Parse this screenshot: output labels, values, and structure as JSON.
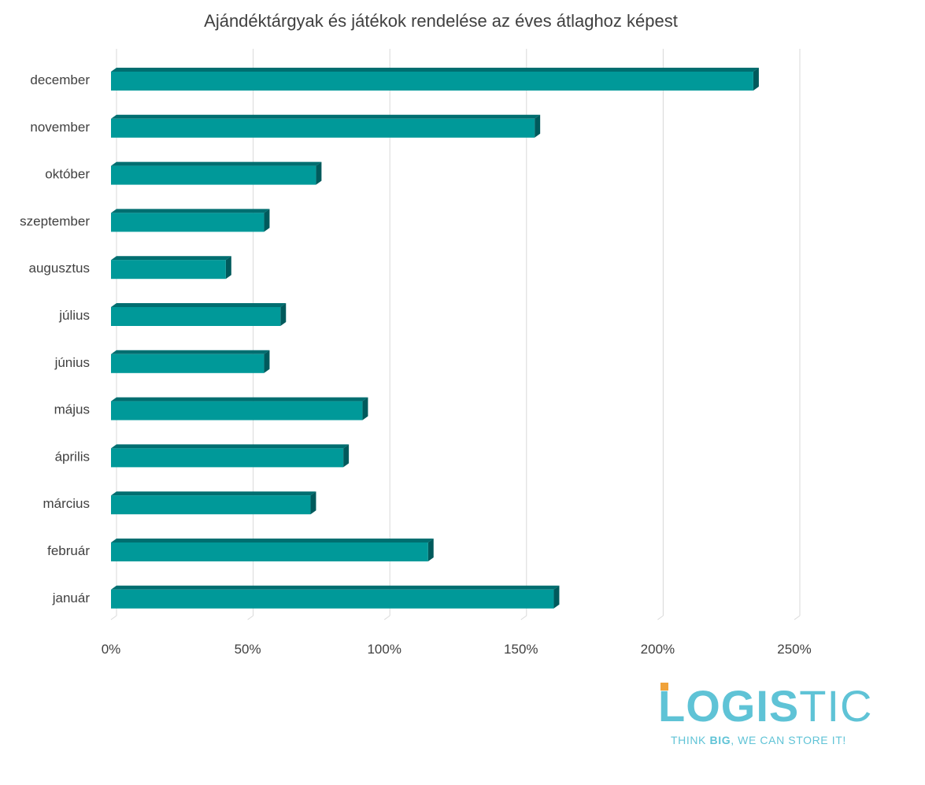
{
  "chart_data": {
    "type": "bar",
    "orientation": "horizontal",
    "title": "Ajándéktárgyak és játékok rendelése az éves átlaghoz képest",
    "categories": [
      "december",
      "november",
      "október",
      "szeptember",
      "augusztus",
      "július",
      "június",
      "május",
      "április",
      "március",
      "február",
      "január"
    ],
    "values": [
      2.35,
      1.55,
      0.75,
      0.56,
      0.42,
      0.62,
      0.56,
      0.92,
      0.85,
      0.73,
      1.16,
      1.62
    ],
    "xlim": [
      0,
      2.5
    ],
    "xticks": [
      "0%",
      "50%",
      "100%",
      "150%",
      "200%",
      "250%"
    ],
    "grid": true,
    "legend": "none",
    "colors": {
      "bar_front": "#009999",
      "bar_top": "#006e70",
      "bar_side": "#005a5c"
    }
  },
  "logo": {
    "word_part1": "LOGIS",
    "word_part2": "TIC",
    "tagline_part1": "THINK ",
    "tagline_bold": "BIG",
    "tagline_part2": ", WE CAN STORE IT!",
    "colors": {
      "main": "#5fc3d6",
      "accent": "#f0a23a"
    }
  }
}
